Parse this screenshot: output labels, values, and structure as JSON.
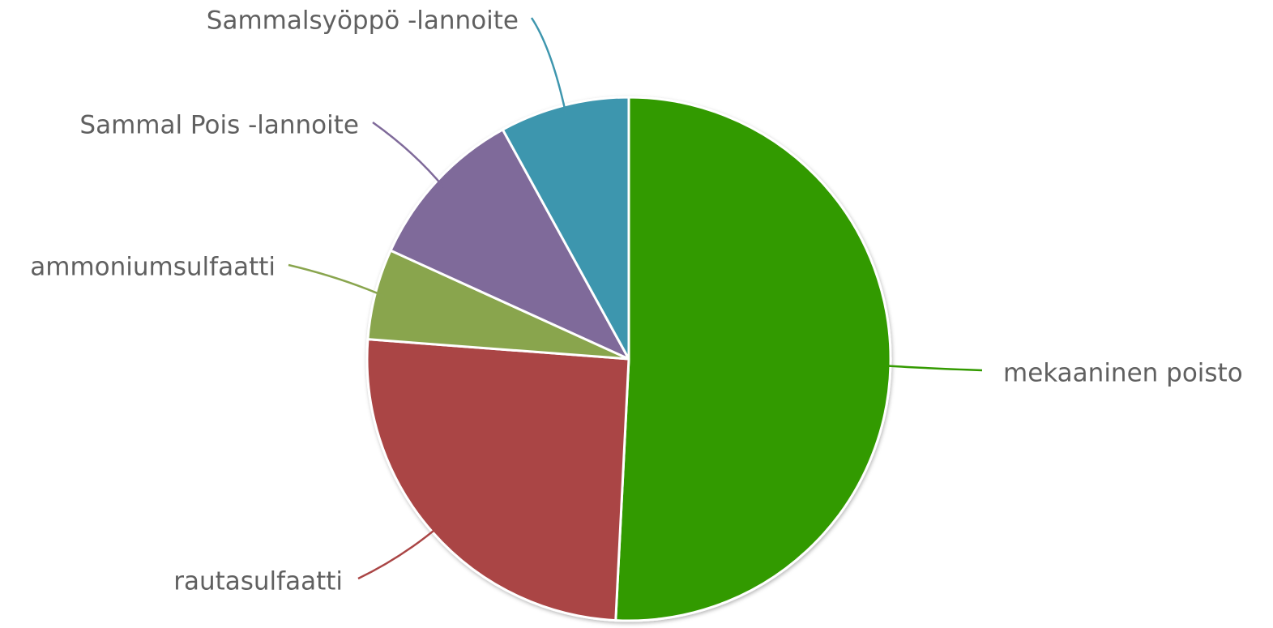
{
  "chart_data": {
    "type": "pie",
    "title": "",
    "slices": [
      {
        "label": "mekaaninen poisto",
        "value": 50.8,
        "color": "#339a00"
      },
      {
        "label": "rautasulfaatti",
        "value": 25.4,
        "color": "#aa4545"
      },
      {
        "label": "ammoniumsulfaatti",
        "value": 5.6,
        "color": "#89a54e"
      },
      {
        "label": "Sammal Pois -lannoite",
        "value": 10.2,
        "color": "#7f6a9a"
      },
      {
        "label": "Sammalsyöppö -lannoite",
        "value": 8.0,
        "color": "#3e96ae"
      }
    ],
    "start_angle": "12 o'clock, clockwise",
    "legend": "none",
    "data_labels": "outside with connector lines"
  }
}
